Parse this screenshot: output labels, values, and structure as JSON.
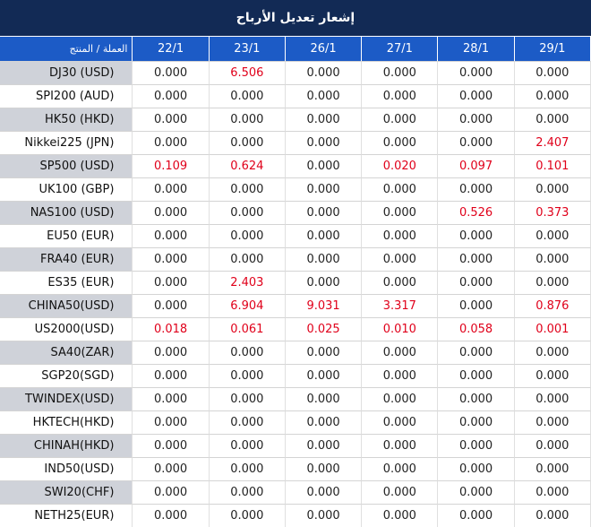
{
  "title": "إشعار تعديل الأرباح",
  "header": {
    "product_label": "العملة / المنتج",
    "dates": [
      "22/1",
      "23/1",
      "26/1",
      "27/1",
      "28/1",
      "29/1"
    ]
  },
  "colors": {
    "title_bg": "#122a55",
    "header_bg": "#1c5bc6",
    "shade_bg": "#cfd2d9",
    "nonzero_text": "#e0001a"
  },
  "rows": [
    {
      "product": "DJ30 (USD)",
      "values": [
        "0.000",
        "6.506",
        "0.000",
        "0.000",
        "0.000",
        "0.000"
      ]
    },
    {
      "product": "SPI200 (AUD)",
      "values": [
        "0.000",
        "0.000",
        "0.000",
        "0.000",
        "0.000",
        "0.000"
      ]
    },
    {
      "product": "HK50 (HKD)",
      "values": [
        "0.000",
        "0.000",
        "0.000",
        "0.000",
        "0.000",
        "0.000"
      ]
    },
    {
      "product": "Nikkei225 (JPN)",
      "values": [
        "0.000",
        "0.000",
        "0.000",
        "0.000",
        "0.000",
        "2.407"
      ]
    },
    {
      "product": "SP500 (USD)",
      "values": [
        "0.109",
        "0.624",
        "0.000",
        "0.020",
        "0.097",
        "0.101"
      ]
    },
    {
      "product": "UK100 (GBP)",
      "values": [
        "0.000",
        "0.000",
        "0.000",
        "0.000",
        "0.000",
        "0.000"
      ]
    },
    {
      "product": "NAS100 (USD)",
      "values": [
        "0.000",
        "0.000",
        "0.000",
        "0.000",
        "0.526",
        "0.373"
      ]
    },
    {
      "product": "EU50 (EUR)",
      "values": [
        "0.000",
        "0.000",
        "0.000",
        "0.000",
        "0.000",
        "0.000"
      ]
    },
    {
      "product": "FRA40 (EUR)",
      "values": [
        "0.000",
        "0.000",
        "0.000",
        "0.000",
        "0.000",
        "0.000"
      ]
    },
    {
      "product": "ES35 (EUR)",
      "values": [
        "0.000",
        "2.403",
        "0.000",
        "0.000",
        "0.000",
        "0.000"
      ]
    },
    {
      "product": "CHINA50(USD)",
      "values": [
        "0.000",
        "6.904",
        "9.031",
        "3.317",
        "0.000",
        "0.876"
      ]
    },
    {
      "product": "US2000(USD)",
      "values": [
        "0.018",
        "0.061",
        "0.025",
        "0.010",
        "0.058",
        "0.001"
      ]
    },
    {
      "product": "SA40(ZAR)",
      "values": [
        "0.000",
        "0.000",
        "0.000",
        "0.000",
        "0.000",
        "0.000"
      ]
    },
    {
      "product": "SGP20(SGD)",
      "values": [
        "0.000",
        "0.000",
        "0.000",
        "0.000",
        "0.000",
        "0.000"
      ]
    },
    {
      "product": "TWINDEX(USD)",
      "values": [
        "0.000",
        "0.000",
        "0.000",
        "0.000",
        "0.000",
        "0.000"
      ]
    },
    {
      "product": "HKTECH(HKD)",
      "values": [
        "0.000",
        "0.000",
        "0.000",
        "0.000",
        "0.000",
        "0.000"
      ]
    },
    {
      "product": "CHINAH(HKD)",
      "values": [
        "0.000",
        "0.000",
        "0.000",
        "0.000",
        "0.000",
        "0.000"
      ]
    },
    {
      "product": "IND50(USD)",
      "values": [
        "0.000",
        "0.000",
        "0.000",
        "0.000",
        "0.000",
        "0.000"
      ]
    },
    {
      "product": "SWI20(CHF)",
      "values": [
        "0.000",
        "0.000",
        "0.000",
        "0.000",
        "0.000",
        "0.000"
      ]
    },
    {
      "product": "NETH25(EUR)",
      "values": [
        "0.000",
        "0.000",
        "0.000",
        "0.000",
        "0.000",
        "0.000"
      ]
    }
  ]
}
